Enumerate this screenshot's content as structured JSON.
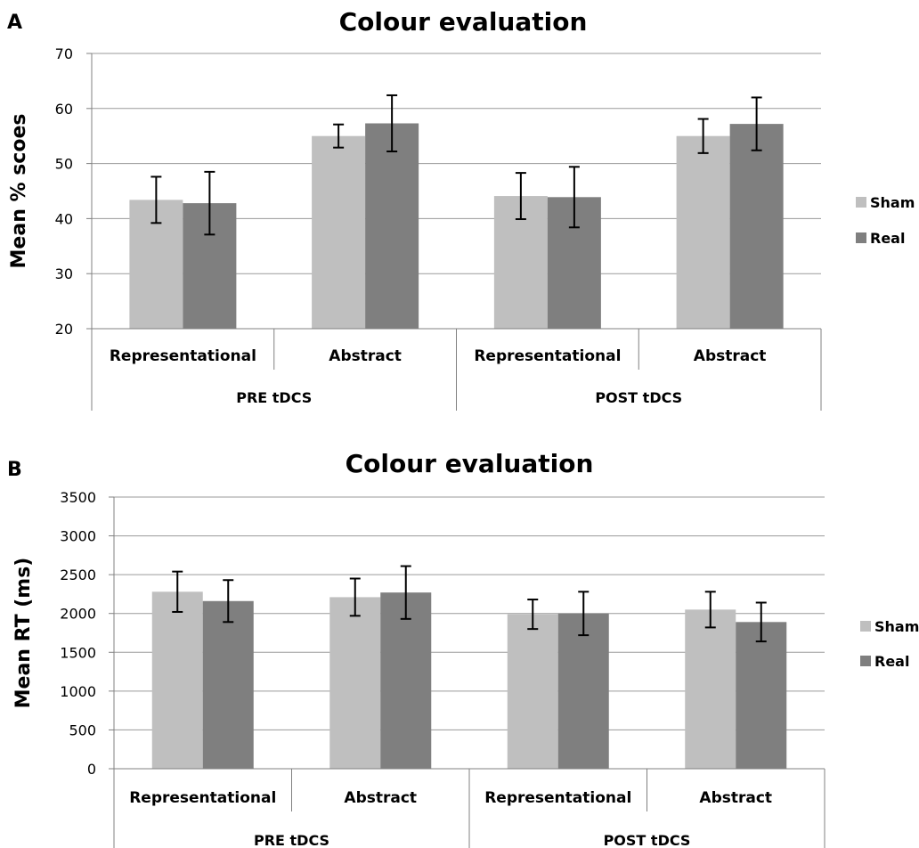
{
  "chart_data": [
    {
      "panel_label": "A",
      "type": "bar",
      "title": "Colour evaluation",
      "ylabel": "Mean % scoes",
      "ylim": [
        20,
        70
      ],
      "yticks": [
        20,
        30,
        40,
        50,
        60,
        70
      ],
      "categories": [
        "Representational",
        "Abstract",
        "Representational",
        "Abstract"
      ],
      "groups": [
        {
          "label": "PRE tDCS",
          "span": [
            0,
            1
          ]
        },
        {
          "label": "POST tDCS",
          "span": [
            2,
            3
          ]
        }
      ],
      "series": [
        {
          "name": "Sham",
          "color": "#bfbfbf",
          "values": [
            43.4,
            55.0,
            44.1,
            55.0
          ],
          "errors": [
            4.2,
            2.1,
            4.2,
            3.1
          ]
        },
        {
          "name": "Real",
          "color": "#7f7f7f",
          "values": [
            42.8,
            57.3,
            43.9,
            57.2
          ],
          "errors": [
            5.7,
            5.1,
            5.5,
            4.8
          ]
        }
      ],
      "grid": true,
      "legend": "right"
    },
    {
      "panel_label": "B",
      "type": "bar",
      "title": "Colour evaluation",
      "ylabel": "Mean RT (ms)",
      "ylim": [
        0,
        3500
      ],
      "yticks": [
        0,
        500,
        1000,
        1500,
        2000,
        2500,
        3000,
        3500
      ],
      "categories": [
        "Representational",
        "Abstract",
        "Representational",
        "Abstract"
      ],
      "groups": [
        {
          "label": "PRE tDCS",
          "span": [
            0,
            1
          ]
        },
        {
          "label": "POST tDCS",
          "span": [
            2,
            3
          ]
        }
      ],
      "series": [
        {
          "name": "Sham",
          "color": "#bfbfbf",
          "values": [
            2280,
            2210,
            1990,
            2050
          ],
          "errors": [
            260,
            240,
            190,
            230
          ]
        },
        {
          "name": "Real",
          "color": "#7f7f7f",
          "values": [
            2160,
            2270,
            2000,
            1890
          ],
          "errors": [
            270,
            340,
            280,
            250
          ]
        }
      ],
      "grid": true,
      "legend": "right"
    }
  ]
}
